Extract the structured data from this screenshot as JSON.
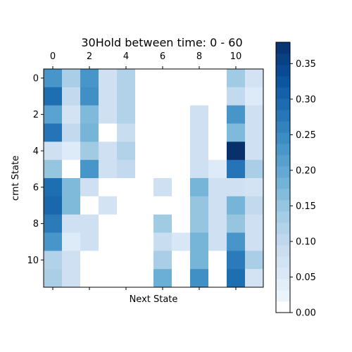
{
  "chart_data": {
    "type": "heatmap",
    "title": "30Hold between time: 0 - 60",
    "xlabel": "Next State",
    "ylabel": "crnt State",
    "x_tick_labels": [
      "0",
      "2",
      "4",
      "6",
      "8",
      "10"
    ],
    "x_tick_values": [
      0,
      2,
      4,
      6,
      8,
      10
    ],
    "y_tick_labels": [
      "0",
      "2",
      "4",
      "6",
      "8",
      "10"
    ],
    "y_tick_values": [
      0,
      2,
      4,
      6,
      8,
      10
    ],
    "x_axis_position": "top",
    "n_rows": 12,
    "n_cols": 12,
    "vmin": 0.0,
    "vmax": 0.38,
    "colormap": "Blues",
    "colorbar": {
      "position": "right",
      "tick_values": [
        0.0,
        0.05,
        0.1,
        0.15,
        0.2,
        0.25,
        0.3,
        0.35
      ],
      "tick_labels": [
        "0.00",
        "0.05",
        "0.10",
        "0.15",
        "0.20",
        "0.25",
        "0.30",
        "0.35"
      ]
    },
    "values": [
      [
        0.23,
        0.13,
        0.23,
        0.08,
        0.12,
        0,
        0,
        0,
        0,
        0,
        0.14,
        0.07
      ],
      [
        0.29,
        0.1,
        0.24,
        0.08,
        0.12,
        0,
        0,
        0,
        0,
        0,
        0.1,
        0.05
      ],
      [
        0.21,
        0.07,
        0.17,
        0.08,
        0.12,
        0,
        0,
        0,
        0.08,
        0,
        0.23,
        0.08
      ],
      [
        0.28,
        0.1,
        0.18,
        0,
        0.09,
        0,
        0,
        0,
        0.08,
        0,
        0.17,
        0.08
      ],
      [
        0.08,
        0.05,
        0.14,
        0.08,
        0.12,
        0,
        0,
        0,
        0.08,
        0,
        0.38,
        0.08
      ],
      [
        0.15,
        0,
        0.23,
        0.08,
        0.1,
        0,
        0,
        0,
        0.08,
        0.05,
        0.28,
        0.13
      ],
      [
        0.29,
        0.17,
        0.08,
        0,
        0,
        0,
        0.08,
        0,
        0.18,
        0.08,
        0.08,
        0.07
      ],
      [
        0.3,
        0.17,
        0,
        0.07,
        0,
        0,
        0,
        0,
        0.15,
        0.08,
        0.18,
        0.1
      ],
      [
        0.27,
        0.08,
        0.08,
        0,
        0,
        0,
        0.14,
        0,
        0.15,
        0.08,
        0.15,
        0.08
      ],
      [
        0.23,
        0.05,
        0.08,
        0,
        0,
        0,
        0.09,
        0.06,
        0.18,
        0.08,
        0.23,
        0.08
      ],
      [
        0.12,
        0.08,
        0,
        0,
        0,
        0,
        0.13,
        0,
        0.18,
        0,
        0.27,
        0.13
      ],
      [
        0.13,
        0.08,
        0,
        0,
        0,
        0,
        0.19,
        0,
        0.24,
        0,
        0.29,
        0.07
      ]
    ]
  }
}
